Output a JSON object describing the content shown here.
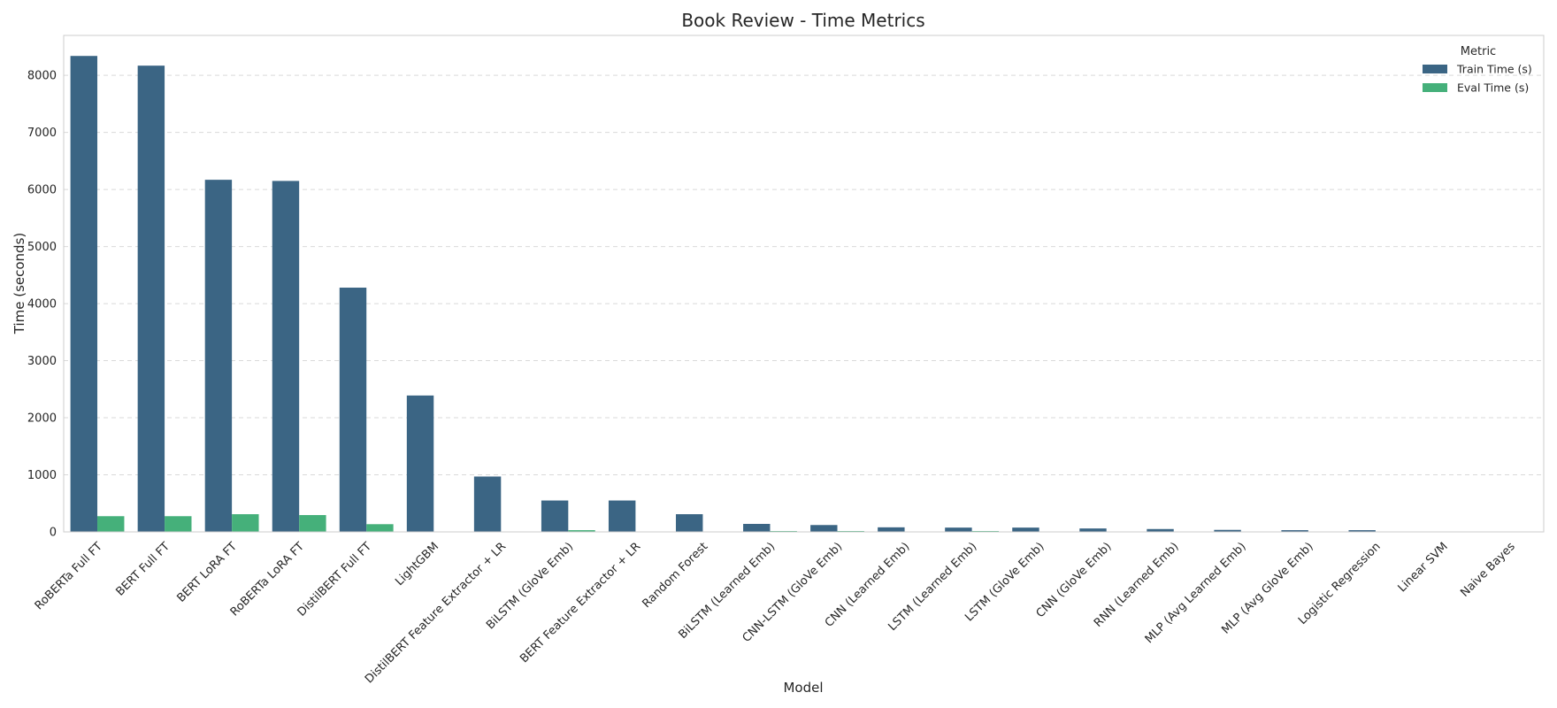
{
  "chart_data": {
    "type": "bar",
    "title": "Book Review - Time Metrics",
    "xlabel": "Model",
    "ylabel": "Time (seconds)",
    "ylim": [
      0,
      8700
    ],
    "yticks": [
      0,
      1000,
      2000,
      3000,
      4000,
      5000,
      6000,
      7000,
      8000
    ],
    "grid": "horizontal dashed",
    "legend": {
      "title": "Metric",
      "position": "top-right"
    },
    "categories": [
      "RoBERTa Full FT",
      "BERT Full FT",
      "BERT LoRA FT",
      "RoBERTa LoRA FT",
      "DistilBERT Full FT",
      "LightGBM",
      "DistilBERT Feature Extractor + LR",
      "BiLSTM (GloVe Emb)",
      "BERT Feature Extractor + LR",
      "Random Forest",
      "BiLSTM (Learned Emb)",
      "CNN-LSTM (GloVe Emb)",
      "CNN (Learned Emb)",
      "LSTM (Learned Emb)",
      "LSTM (GloVe Emb)",
      "CNN (GloVe Emb)",
      "RNN (Learned Emb)",
      "MLP (Avg Learned Emb)",
      "MLP (Avg GloVe Emb)",
      "Logistic Regression",
      "Linear SVM",
      "Naive Bayes"
    ],
    "series": [
      {
        "name": "Train Time (s)",
        "color": "#3b6584",
        "values": [
          8340,
          8170,
          6170,
          6150,
          4280,
          2390,
          970,
          550,
          550,
          310,
          140,
          120,
          80,
          75,
          75,
          60,
          50,
          35,
          30,
          30,
          5,
          3
        ]
      },
      {
        "name": "Eval Time (s)",
        "color": "#45b07a",
        "values": [
          275,
          275,
          310,
          295,
          135,
          3,
          3,
          30,
          3,
          3,
          15,
          15,
          3,
          15,
          3,
          3,
          3,
          3,
          3,
          3,
          2,
          1
        ]
      }
    ]
  }
}
